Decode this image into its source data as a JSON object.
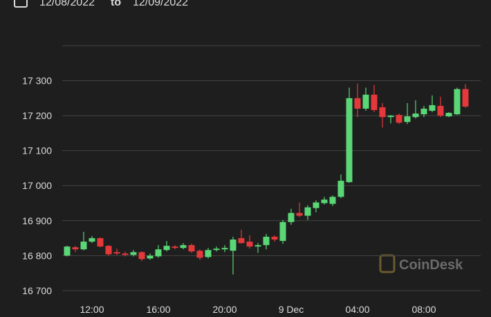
{
  "header": {
    "from": "12/08/2022",
    "sep": "to",
    "to": "12/09/2022"
  },
  "chart_data": {
    "type": "candlestick",
    "watermark": "CoinDesk",
    "categories": [
      null,
      null,
      null,
      "12:00",
      null,
      null,
      null,
      null,
      null,
      null,
      null,
      "16:00",
      null,
      null,
      null,
      null,
      null,
      null,
      null,
      "20:00",
      null,
      null,
      null,
      null,
      null,
      null,
      null,
      "9 Dec",
      null,
      null,
      null,
      null,
      null,
      null,
      null,
      "04:00",
      null,
      null,
      null,
      null,
      null,
      null,
      null,
      "08:00",
      null,
      null,
      null,
      null,
      null
    ],
    "open": [
      16800,
      16824,
      16818,
      16840,
      16850,
      16828,
      16810,
      16806,
      16802,
      16810,
      16792,
      16798,
      16816,
      16826,
      16822,
      16830,
      16814,
      16796,
      16816,
      16818,
      16814,
      16850,
      16840,
      16826,
      16830,
      16854,
      16842,
      16896,
      16922,
      16914,
      16936,
      16950,
      16948,
      16968,
      17010,
      17250,
      17220,
      17260,
      17224,
      17196,
      17202,
      17182,
      17196,
      17204,
      17214,
      17228,
      17198,
      17204,
      17276
    ],
    "high": [
      16828,
      16828,
      16868,
      16856,
      16852,
      16830,
      16820,
      16812,
      16816,
      16812,
      16806,
      16830,
      16842,
      16830,
      16836,
      16834,
      16818,
      16822,
      16826,
      16830,
      16854,
      16874,
      16858,
      16836,
      16862,
      16858,
      16902,
      16934,
      16952,
      16944,
      16958,
      16968,
      16972,
      17032,
      17280,
      17292,
      17280,
      17288,
      17236,
      17202,
      17206,
      17236,
      17244,
      17228,
      17258,
      17254,
      17210,
      17280,
      17290
    ],
    "low": [
      16798,
      16810,
      16815,
      16836,
      16824,
      16800,
      16802,
      16798,
      16798,
      16784,
      16788,
      16794,
      16812,
      16818,
      16818,
      16808,
      16788,
      16792,
      16812,
      16810,
      16746,
      16834,
      16820,
      16808,
      16818,
      16840,
      16834,
      16888,
      16910,
      16902,
      16924,
      16946,
      16942,
      16964,
      17008,
      17196,
      17214,
      17210,
      17166,
      17178,
      17176,
      17176,
      17192,
      17196,
      17210,
      17196,
      17196,
      17202,
      17222
    ],
    "close": [
      16826,
      16818,
      16840,
      16850,
      16826,
      16804,
      16806,
      16802,
      16810,
      16790,
      16800,
      16818,
      16828,
      16822,
      16830,
      16812,
      16794,
      16816,
      16820,
      16822,
      16846,
      16836,
      16826,
      16830,
      16854,
      16846,
      16896,
      16922,
      16914,
      16938,
      16952,
      16960,
      16968,
      17014,
      17250,
      17220,
      17260,
      17216,
      17196,
      17200,
      17180,
      17198,
      17206,
      17220,
      17230,
      17200,
      17208,
      17276,
      17226
    ],
    "up_color": "#5ad676",
    "down_color": "#e5383b",
    "ylim": [
      16680,
      17400
    ],
    "yticks": [
      {
        "value": 16700,
        "label": "16 700"
      },
      {
        "value": 16800,
        "label": "16 800"
      },
      {
        "value": 16900,
        "label": "16 900"
      },
      {
        "value": 17000,
        "label": "17 000"
      },
      {
        "value": 17100,
        "label": "17 100"
      },
      {
        "value": 17200,
        "label": "17 200"
      },
      {
        "value": 17300,
        "label": "17 300"
      }
    ],
    "grid": true
  }
}
